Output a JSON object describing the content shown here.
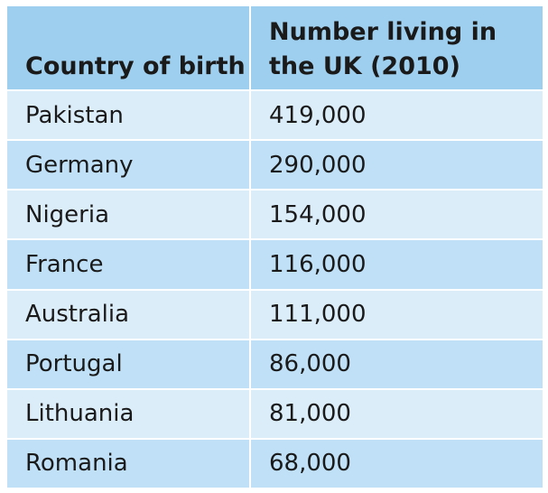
{
  "table": {
    "headers": [
      "Country of birth",
      "Number living in the UK (2010)"
    ],
    "rows": [
      [
        "Pakistan",
        "419,000"
      ],
      [
        "Germany",
        "290,000"
      ],
      [
        "Nigeria",
        "154,000"
      ],
      [
        "France",
        "116,000"
      ],
      [
        "Australia",
        "111,000"
      ],
      [
        "Portugal",
        "86,000"
      ],
      [
        "Lithuania",
        "81,000"
      ],
      [
        "Romania",
        "68,000"
      ]
    ]
  }
}
